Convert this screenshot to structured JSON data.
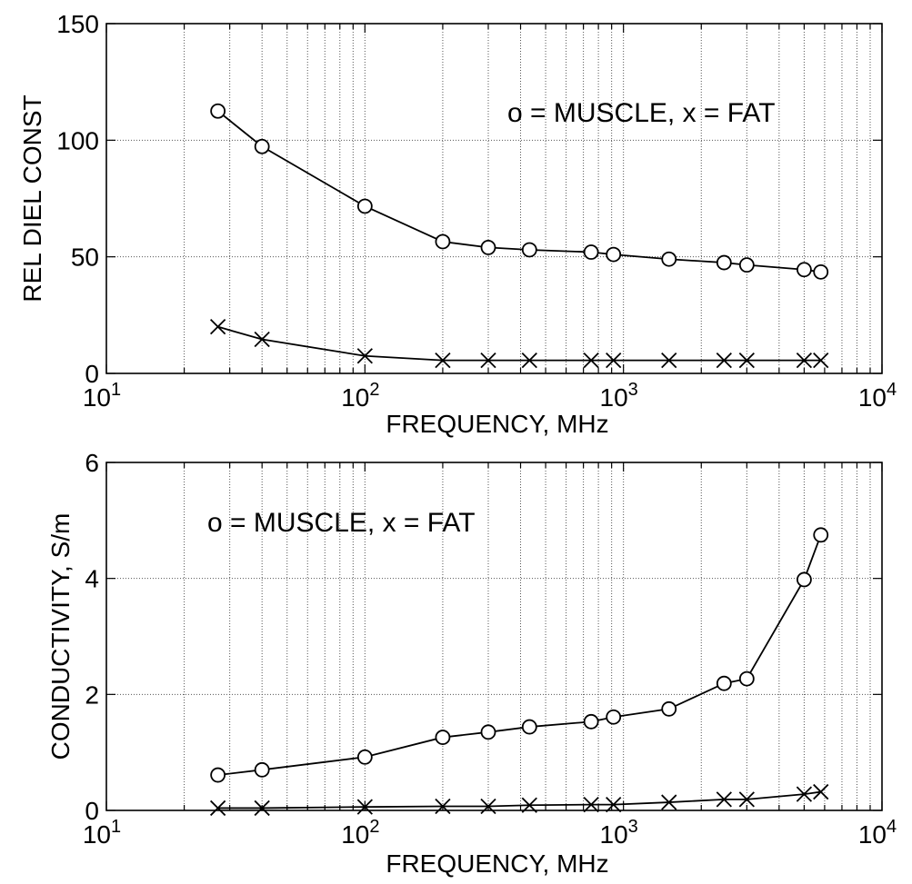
{
  "chart_data": [
    {
      "type": "line",
      "xscale": "log",
      "xlim": [
        10,
        10000
      ],
      "ylim": [
        0,
        150
      ],
      "xlabel": "FREQUENCY, MHz",
      "ylabel": "REL DIEL CONST",
      "xticks": [
        {
          "base": "10",
          "exp": "1"
        },
        {
          "base": "10",
          "exp": "2"
        },
        {
          "base": "10",
          "exp": "3"
        },
        {
          "base": "10",
          "exp": "4"
        }
      ],
      "yticks": [
        "0",
        "50",
        "100",
        "150"
      ],
      "yticks_values": [
        0,
        50,
        100,
        150
      ],
      "grid": true,
      "annotation": "o = MUSCLE, x = FAT",
      "series": [
        {
          "marker": "circle",
          "x": [
            27,
            40,
            100,
            200,
            300,
            433,
            750,
            915,
            1500,
            2450,
            3000,
            5000,
            5800
          ],
          "y": [
            112.5,
            97.3,
            71.7,
            56.5,
            54.0,
            53.0,
            52.0,
            51.0,
            49.0,
            47.5,
            46.5,
            44.5,
            43.5
          ]
        },
        {
          "marker": "x",
          "x": [
            27,
            40,
            100,
            200,
            300,
            433,
            750,
            915,
            1500,
            2450,
            3000,
            5000,
            5800
          ],
          "y": [
            20.0,
            14.6,
            7.5,
            5.6,
            5.6,
            5.6,
            5.6,
            5.6,
            5.6,
            5.6,
            5.6,
            5.6,
            5.6
          ]
        }
      ]
    },
    {
      "type": "line",
      "xscale": "log",
      "xlim": [
        10,
        10000
      ],
      "ylim": [
        0,
        6
      ],
      "xlabel": "FREQUENCY, MHz",
      "ylabel": "CONDUCTIVITY, S/m",
      "xticks": [
        {
          "base": "10",
          "exp": "1"
        },
        {
          "base": "10",
          "exp": "2"
        },
        {
          "base": "10",
          "exp": "3"
        },
        {
          "base": "10",
          "exp": "4"
        }
      ],
      "yticks": [
        "0",
        "2",
        "4",
        "6"
      ],
      "yticks_values": [
        0,
        2,
        4,
        6
      ],
      "grid": true,
      "annotation": "o = MUSCLE, x = FAT",
      "series": [
        {
          "marker": "circle",
          "x": [
            27,
            40,
            100,
            200,
            300,
            433,
            750,
            915,
            1500,
            2450,
            3000,
            5000,
            5800
          ],
          "y": [
            0.61,
            0.7,
            0.92,
            1.26,
            1.35,
            1.44,
            1.53,
            1.61,
            1.75,
            2.19,
            2.27,
            3.98,
            4.75
          ]
        },
        {
          "marker": "x",
          "x": [
            27,
            40,
            100,
            200,
            300,
            433,
            750,
            915,
            1500,
            2450,
            3000,
            5000,
            5800
          ],
          "y": [
            0.04,
            0.04,
            0.06,
            0.07,
            0.07,
            0.09,
            0.1,
            0.1,
            0.14,
            0.19,
            0.19,
            0.28,
            0.32
          ]
        }
      ]
    }
  ]
}
